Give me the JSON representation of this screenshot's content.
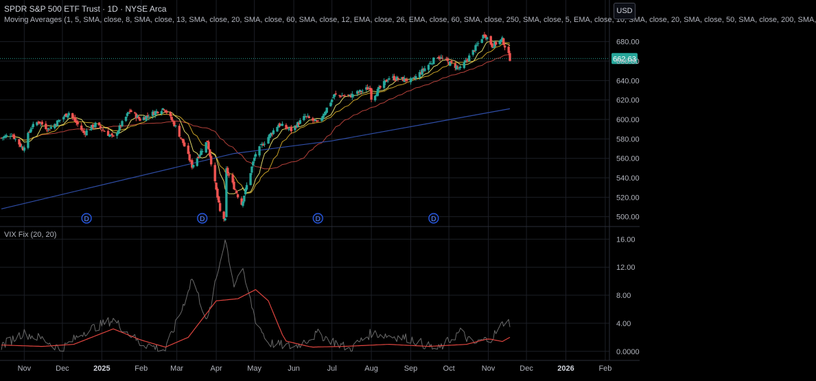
{
  "header": {
    "title": "SPDR S&P 500 ETF Trust · 1D · NYSE Arca",
    "ma_line": "Moving Averages (1, 5, SMA, close, 8, SMA, close, 13, SMA, close, 20, SMA, close, 60, SMA, close, 12, EMA, close, 26, EMA, close, 60, SMA, close, 250, SMA, close, 5, EMA, close, 10, SMA, close, 20, SMA, close, 50, SMA, close, 200, SMA,",
    "currency": "USD"
  },
  "colors": {
    "background": "#000000",
    "grid": "#1c1f26",
    "up": "#26a69a",
    "down": "#ef5350",
    "ma_fast": "#c9a227",
    "ma_mid": "#e0d86a",
    "ma_slow": "#b5413a",
    "ma_200": "#2f4ea8",
    "vix_line": "#6b6b6b",
    "vix_sma": "#e0453f",
    "price_badge": "#26a69a",
    "axis_text": "#b2b5be",
    "dividend": "#2962ff"
  },
  "chart_data": [
    {
      "type": "candlestick",
      "title": "SPDR S&P 500 ETF Trust · 1D · NYSE Arca",
      "last_price": "662.63",
      "ylim": [
        492,
        696
      ],
      "ytick_labels": [
        "680.00",
        "660.00",
        "640.00",
        "620.00",
        "600.00",
        "580.00",
        "560.00",
        "540.00",
        "520.00",
        "500.00"
      ],
      "ytick_values": [
        680,
        660,
        640,
        620,
        600,
        580,
        560,
        540,
        520,
        500
      ],
      "xtick_labels": [
        "Nov",
        "Dec",
        "2025",
        "Feb",
        "Mar",
        "Apr",
        "May",
        "Jun",
        "Jul",
        "Aug",
        "Sep",
        "Oct",
        "Nov",
        "Dec",
        "2026",
        "Feb"
      ],
      "xtick_dates": [
        "2024-11-01",
        "2024-12-01",
        "2025-01-01",
        "2025-02-01",
        "2025-03-01",
        "2025-04-01",
        "2025-05-01",
        "2025-06-01",
        "2025-07-01",
        "2025-08-01",
        "2025-09-01",
        "2025-10-01",
        "2025-11-01",
        "2025-12-01",
        "2026-01-01",
        "2026-02-01"
      ],
      "close_path": [
        [
          "2024-10-14",
          581
        ],
        [
          "2024-10-22",
          585
        ],
        [
          "2024-10-31",
          570
        ],
        [
          "2024-11-06",
          591
        ],
        [
          "2024-11-12",
          598
        ],
        [
          "2024-11-20",
          590
        ],
        [
          "2024-12-06",
          607
        ],
        [
          "2024-12-18",
          586
        ],
        [
          "2024-12-27",
          595
        ],
        [
          "2025-01-10",
          581
        ],
        [
          "2025-01-23",
          609
        ],
        [
          "2025-01-31",
          600
        ],
        [
          "2025-02-19",
          612
        ],
        [
          "2025-02-27",
          595
        ],
        [
          "2025-03-06",
          576
        ],
        [
          "2025-03-13",
          552
        ],
        [
          "2025-03-25",
          578
        ],
        [
          "2025-04-04",
          505
        ],
        [
          "2025-04-08",
          496
        ],
        [
          "2025-04-09",
          548
        ],
        [
          "2025-04-21",
          513
        ],
        [
          "2025-05-02",
          565
        ],
        [
          "2025-05-12",
          582
        ],
        [
          "2025-05-20",
          595
        ],
        [
          "2025-05-30",
          589
        ],
        [
          "2025-06-10",
          603
        ],
        [
          "2025-06-20",
          596
        ],
        [
          "2025-07-03",
          625
        ],
        [
          "2025-07-15",
          624
        ],
        [
          "2025-07-31",
          633
        ],
        [
          "2025-08-01",
          622
        ],
        [
          "2025-08-15",
          643
        ],
        [
          "2025-09-02",
          640
        ],
        [
          "2025-09-22",
          665
        ],
        [
          "2025-10-10",
          652
        ],
        [
          "2025-10-20",
          670
        ],
        [
          "2025-10-29",
          688
        ],
        [
          "2025-11-04",
          676
        ],
        [
          "2025-11-12",
          682
        ],
        [
          "2025-11-18",
          662.63
        ]
      ],
      "sma200_path": [
        [
          "2024-10-14",
          508
        ],
        [
          "2025-04-15",
          565
        ],
        [
          "2025-07-01",
          578
        ],
        [
          "2025-11-18",
          611
        ]
      ],
      "dividend_markers": {
        "label": "D",
        "dates": [
          "2024-12-20",
          "2025-03-21",
          "2025-06-20",
          "2025-09-19"
        ]
      }
    },
    {
      "type": "line",
      "title": "VIX Fix (20, 20)",
      "ylim": [
        -1,
        17.5
      ],
      "ytick_labels": [
        "16.00",
        "12.00",
        "8.00",
        "4.00",
        "0.0000"
      ],
      "ytick_values": [
        16,
        12,
        8,
        4,
        0
      ],
      "series": [
        {
          "values": [
            [
              "2024-10-14",
              0.8
            ],
            [
              "2024-10-31",
              2.6
            ],
            [
              "2024-11-15",
              1.8
            ],
            [
              "2024-11-30",
              0.3
            ],
            [
              "2024-12-18",
              2.8
            ],
            [
              "2025-01-10",
              4.5
            ],
            [
              "2025-01-31",
              1.2
            ],
            [
              "2025-02-20",
              0.2
            ],
            [
              "2025-03-05",
              6.0
            ],
            [
              "2025-03-13",
              10.5
            ],
            [
              "2025-03-25",
              4.2
            ],
            [
              "2025-04-08",
              16.2
            ],
            [
              "2025-04-15",
              9.5
            ],
            [
              "2025-04-21",
              11.8
            ],
            [
              "2025-05-02",
              4.5
            ],
            [
              "2025-05-12",
              1.2
            ],
            [
              "2025-06-01",
              0.6
            ],
            [
              "2025-06-20",
              2.5
            ],
            [
              "2025-07-15",
              0.3
            ],
            [
              "2025-08-01",
              2.6
            ],
            [
              "2025-09-01",
              1.8
            ],
            [
              "2025-09-22",
              0.2
            ],
            [
              "2025-10-10",
              2.8
            ],
            [
              "2025-10-20",
              1.0
            ],
            [
              "2025-11-04",
              2.0
            ],
            [
              "2025-11-14",
              4.3
            ],
            [
              "2025-11-18",
              4.1
            ]
          ]
        },
        {
          "values": [
            [
              "2024-10-14",
              0.9
            ],
            [
              "2024-11-15",
              0.7
            ],
            [
              "2024-12-10",
              1.0
            ],
            [
              "2025-01-10",
              3.2
            ],
            [
              "2025-02-01",
              1.6
            ],
            [
              "2025-02-20",
              0.6
            ],
            [
              "2025-03-10",
              2.0
            ],
            [
              "2025-04-01",
              7.2
            ],
            [
              "2025-04-18",
              7.5
            ],
            [
              "2025-05-02",
              8.8
            ],
            [
              "2025-05-12",
              7.2
            ],
            [
              "2025-05-25",
              1.5
            ],
            [
              "2025-06-15",
              0.6
            ],
            [
              "2025-07-10",
              0.7
            ],
            [
              "2025-08-15",
              1.0
            ],
            [
              "2025-09-15",
              0.7
            ],
            [
              "2025-10-15",
              1.0
            ],
            [
              "2025-11-01",
              1.8
            ],
            [
              "2025-11-12",
              1.4
            ],
            [
              "2025-11-18",
              2.0
            ]
          ]
        }
      ]
    }
  ]
}
